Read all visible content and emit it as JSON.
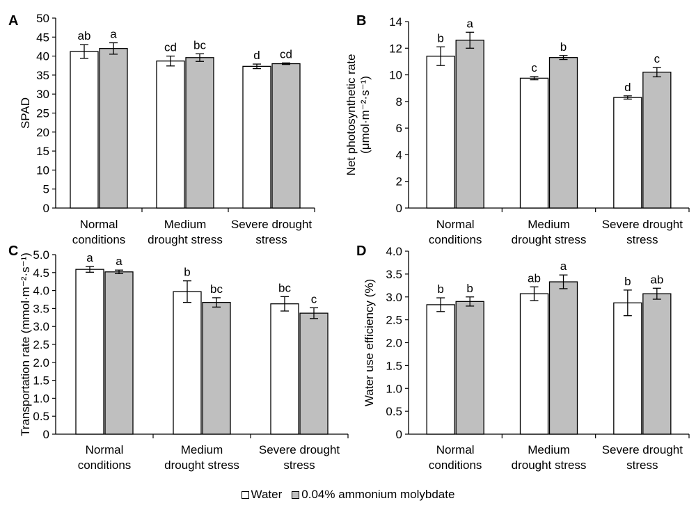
{
  "legend": {
    "water_label": "Water",
    "molybdate_label": "0.04% ammonium molybdate"
  },
  "colors": {
    "water": "#ffffff",
    "molybdate": "#bfbfbf",
    "stroke": "#000000"
  },
  "chart_data": [
    {
      "type": "bar",
      "panel_label": "A",
      "ylabel": [
        "SPAD"
      ],
      "ylim": [
        0,
        50
      ],
      "ticks": [
        "0",
        "5",
        "10",
        "15",
        "20",
        "25",
        "30",
        "35",
        "40",
        "45",
        "50"
      ],
      "categories": [
        [
          "Normal",
          "conditions"
        ],
        [
          "Medium",
          "drought stress"
        ],
        [
          "Severe drought",
          "stress"
        ]
      ],
      "series": [
        {
          "name": "Water",
          "values": [
            41.2,
            38.7,
            37.3
          ],
          "errors": [
            1.8,
            1.3,
            0.6
          ],
          "letters": [
            "ab",
            "cd",
            "d"
          ]
        },
        {
          "name": "0.04% ammonium molybdate",
          "values": [
            42.0,
            39.6,
            38.0
          ],
          "errors": [
            1.5,
            1.0,
            0.2
          ],
          "letters": [
            "a",
            "bc",
            "cd"
          ]
        }
      ]
    },
    {
      "type": "bar",
      "panel_label": "B",
      "ylabel": [
        "Net photosynthetic rate",
        "(μmol·m⁻²·s⁻¹)"
      ],
      "ylim": [
        0,
        14
      ],
      "ticks": [
        "0",
        "2",
        "4",
        "6",
        "8",
        "10",
        "12",
        "14"
      ],
      "categories": [
        [
          "Normal",
          "conditions"
        ],
        [
          "Medium",
          "drought stress"
        ],
        [
          "Severe drought",
          "stress"
        ]
      ],
      "series": [
        {
          "name": "Water",
          "values": [
            11.4,
            9.75,
            8.3
          ],
          "errors": [
            0.7,
            0.12,
            0.12
          ],
          "letters": [
            "b",
            "c",
            "d"
          ]
        },
        {
          "name": "0.04% ammonium molybdate",
          "values": [
            12.6,
            11.3,
            10.2
          ],
          "errors": [
            0.6,
            0.15,
            0.35
          ],
          "letters": [
            "a",
            "b",
            "c"
          ]
        }
      ]
    },
    {
      "type": "bar",
      "panel_label": "C",
      "ylabel": [
        "Transportation rate (mmol·m⁻²·s⁻¹)"
      ],
      "ylim": [
        0,
        5
      ],
      "ticks": [
        "0",
        "0.5",
        "1.0",
        "1.5",
        "2.0",
        "2.5",
        "3.0",
        "3.5",
        "4.0",
        "4.5",
        "5.0"
      ],
      "categories": [
        [
          "Normal",
          "conditions"
        ],
        [
          "Medium",
          "drought  stress"
        ],
        [
          "Severe drought",
          "stress"
        ]
      ],
      "series": [
        {
          "name": "Water",
          "values": [
            4.59,
            3.97,
            3.63
          ],
          "errors": [
            0.08,
            0.3,
            0.2
          ],
          "letters": [
            "a",
            "b",
            "bc"
          ]
        },
        {
          "name": "0.04% ammonium molybdate",
          "values": [
            4.52,
            3.67,
            3.37
          ],
          "errors": [
            0.05,
            0.13,
            0.15
          ],
          "letters": [
            "a",
            "bc",
            "c"
          ]
        }
      ]
    },
    {
      "type": "bar",
      "panel_label": "D",
      "ylabel": [
        "Water use efficiency (%)"
      ],
      "ylim": [
        0,
        4
      ],
      "ticks": [
        "0",
        "0.5",
        "1.0",
        "1.5",
        "2.0",
        "2.5",
        "3.0",
        "3.5",
        "4.0"
      ],
      "categories": [
        [
          "Normal",
          "conditions"
        ],
        [
          "Medium",
          "drought stress"
        ],
        [
          "Severe drought",
          "stress"
        ]
      ],
      "series": [
        {
          "name": "Water",
          "values": [
            2.83,
            3.07,
            2.87
          ],
          "errors": [
            0.15,
            0.15,
            0.28
          ],
          "letters": [
            "b",
            "ab",
            "b"
          ]
        },
        {
          "name": "0.04% ammonium molybdate",
          "values": [
            2.9,
            3.33,
            3.07
          ],
          "errors": [
            0.1,
            0.15,
            0.12
          ],
          "letters": [
            "b",
            "a",
            "ab"
          ]
        }
      ]
    }
  ]
}
